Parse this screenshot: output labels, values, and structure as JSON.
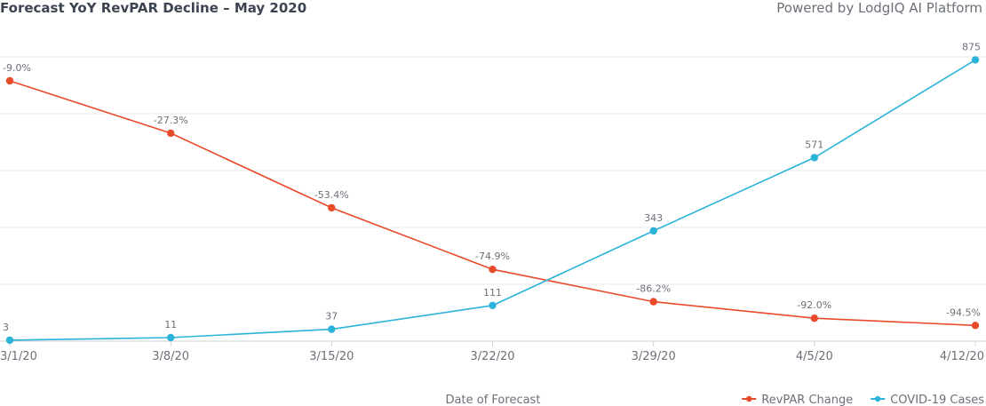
{
  "title": "Forecast YoY RevPAR Decline – May 2020",
  "credit": "Powered by LodgIQ AI Platform",
  "chart_data": {
    "type": "line",
    "title": "Forecast YoY RevPAR Decline – May 2020",
    "xlabel": "Date of Forecast",
    "categories": [
      "3/1/20",
      "3/8/20",
      "3/15/20",
      "3/22/20",
      "3/29/20",
      "4/5/20",
      "4/12/20"
    ],
    "grid": true,
    "legend_position": "bottom-right",
    "series": [
      {
        "name": "RevPAR Change",
        "color": "#e84a2a",
        "values": [
          -9.0,
          -27.3,
          -53.4,
          -74.9,
          -86.2,
          -92.0,
          -94.5
        ],
        "labels": [
          "-9.0%",
          "-27.3%",
          "-53.4%",
          "-74.9%",
          "-86.2%",
          "-92.0%",
          "-94.5%"
        ],
        "ylim": [
          -100,
          0
        ]
      },
      {
        "name": "COVID-19 Cases",
        "color": "#2bb3d9",
        "values": [
          3,
          11,
          37,
          111,
          343,
          571,
          875
        ],
        "labels": [
          "3",
          "11",
          "37",
          "111",
          "343",
          "571",
          "875"
        ],
        "ylim": [
          0,
          890
        ]
      }
    ]
  }
}
